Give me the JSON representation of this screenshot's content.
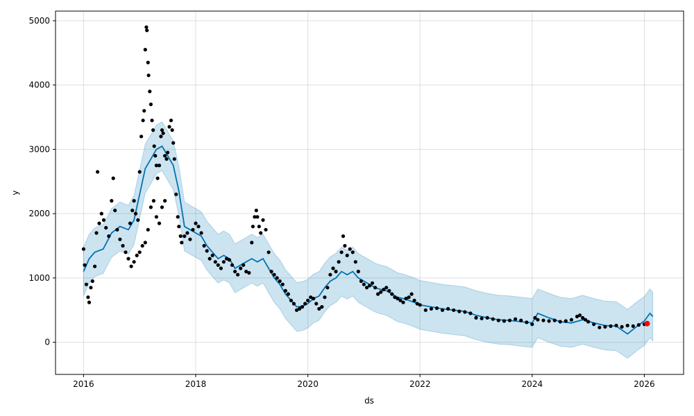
{
  "chart_data": {
    "type": "scatter",
    "title": "",
    "xlabel": "ds",
    "ylabel": "y",
    "xlim": [
      2015.5,
      2026.7
    ],
    "ylim": [
      -500,
      5150
    ],
    "x_ticks": [
      2016,
      2018,
      2020,
      2022,
      2024,
      2026
    ],
    "x_tick_labels": [
      "2016",
      "2018",
      "2020",
      "2022",
      "2024",
      "2026"
    ],
    "y_ticks": [
      0,
      1000,
      2000,
      3000,
      4000,
      5000
    ],
    "y_tick_labels": [
      "0",
      "1000",
      "2000",
      "3000",
      "4000",
      "5000"
    ],
    "grid": true,
    "colors": {
      "observed": "#000000",
      "forecast_line": "#0072B2",
      "uncertainty_band": "#0072B2",
      "highlight": "#ff0000"
    },
    "series": [
      {
        "kind": "observed_points",
        "points": [
          [
            2016.0,
            1450
          ],
          [
            2016.02,
            1200
          ],
          [
            2016.05,
            900
          ],
          [
            2016.08,
            700
          ],
          [
            2016.1,
            620
          ],
          [
            2016.13,
            850
          ],
          [
            2016.16,
            950
          ],
          [
            2016.2,
            1180
          ],
          [
            2016.23,
            1700
          ],
          [
            2016.25,
            2650
          ],
          [
            2016.28,
            1850
          ],
          [
            2016.32,
            2000
          ],
          [
            2016.36,
            1900
          ],
          [
            2016.4,
            1780
          ],
          [
            2016.45,
            1650
          ],
          [
            2016.5,
            2200
          ],
          [
            2016.53,
            2550
          ],
          [
            2016.56,
            2050
          ],
          [
            2016.6,
            1750
          ],
          [
            2016.65,
            1600
          ],
          [
            2016.7,
            1500
          ],
          [
            2016.75,
            1400
          ],
          [
            2016.8,
            1300
          ],
          [
            2016.85,
            1180
          ],
          [
            2016.9,
            1250
          ],
          [
            2016.95,
            1350
          ],
          [
            2017.0,
            1400
          ],
          [
            2017.05,
            1500
          ],
          [
            2017.1,
            1550
          ],
          [
            2017.15,
            1750
          ],
          [
            2017.2,
            2100
          ],
          [
            2017.25,
            2200
          ],
          [
            2017.3,
            1950
          ],
          [
            2017.35,
            1850
          ],
          [
            2017.4,
            2100
          ],
          [
            2017.45,
            2200
          ],
          [
            2016.83,
            1850
          ],
          [
            2016.87,
            2050
          ],
          [
            2016.9,
            2200
          ],
          [
            2016.93,
            2000
          ],
          [
            2016.97,
            1900
          ],
          [
            2017.0,
            2650
          ],
          [
            2017.03,
            3200
          ],
          [
            2017.06,
            3450
          ],
          [
            2017.08,
            3600
          ],
          [
            2017.1,
            4550
          ],
          [
            2017.12,
            4900
          ],
          [
            2017.13,
            4850
          ],
          [
            2017.15,
            4350
          ],
          [
            2017.16,
            4150
          ],
          [
            2017.18,
            3900
          ],
          [
            2017.2,
            3700
          ],
          [
            2017.22,
            3450
          ],
          [
            2017.24,
            3300
          ],
          [
            2017.26,
            3050
          ],
          [
            2017.28,
            2900
          ],
          [
            2017.3,
            2750
          ],
          [
            2017.32,
            2550
          ],
          [
            2017.35,
            2750
          ],
          [
            2017.38,
            3200
          ],
          [
            2017.4,
            3300
          ],
          [
            2017.42,
            3250
          ],
          [
            2017.45,
            2900
          ],
          [
            2017.48,
            2850
          ],
          [
            2017.5,
            2950
          ],
          [
            2017.53,
            3350
          ],
          [
            2017.56,
            3450
          ],
          [
            2017.58,
            3300
          ],
          [
            2017.6,
            3100
          ],
          [
            2017.62,
            2850
          ],
          [
            2017.65,
            2300
          ],
          [
            2017.68,
            1950
          ],
          [
            2017.7,
            1800
          ],
          [
            2017.73,
            1650
          ],
          [
            2017.75,
            1550
          ],
          [
            2017.8,
            1650
          ],
          [
            2017.85,
            1700
          ],
          [
            2017.9,
            1600
          ],
          [
            2017.95,
            1750
          ],
          [
            2018.0,
            1850
          ],
          [
            2018.05,
            1800
          ],
          [
            2018.1,
            1700
          ],
          [
            2018.15,
            1500
          ],
          [
            2018.2,
            1420
          ],
          [
            2018.25,
            1300
          ],
          [
            2018.3,
            1350
          ],
          [
            2018.35,
            1250
          ],
          [
            2018.4,
            1200
          ],
          [
            2018.45,
            1150
          ],
          [
            2018.5,
            1250
          ],
          [
            2018.55,
            1300
          ],
          [
            2018.6,
            1280
          ],
          [
            2018.65,
            1200
          ],
          [
            2018.7,
            1100
          ],
          [
            2018.75,
            1050
          ],
          [
            2018.8,
            1150
          ],
          [
            2018.85,
            1200
          ],
          [
            2018.9,
            1100
          ],
          [
            2018.95,
            1080
          ],
          [
            2019.0,
            1550
          ],
          [
            2019.02,
            1800
          ],
          [
            2019.05,
            1950
          ],
          [
            2019.08,
            2050
          ],
          [
            2019.1,
            1950
          ],
          [
            2019.13,
            1800
          ],
          [
            2019.16,
            1700
          ],
          [
            2019.2,
            1900
          ],
          [
            2019.25,
            1750
          ],
          [
            2019.3,
            1400
          ],
          [
            2019.35,
            1100
          ],
          [
            2019.4,
            1050
          ],
          [
            2019.45,
            1000
          ],
          [
            2019.5,
            950
          ],
          [
            2019.55,
            900
          ],
          [
            2019.6,
            800
          ],
          [
            2019.65,
            750
          ],
          [
            2019.7,
            650
          ],
          [
            2019.75,
            600
          ],
          [
            2019.8,
            500
          ],
          [
            2019.85,
            520
          ],
          [
            2019.9,
            550
          ],
          [
            2019.95,
            600
          ],
          [
            2020.0,
            650
          ],
          [
            2020.05,
            700
          ],
          [
            2020.1,
            680
          ],
          [
            2020.15,
            600
          ],
          [
            2020.2,
            520
          ],
          [
            2020.25,
            550
          ],
          [
            2020.3,
            700
          ],
          [
            2020.35,
            850
          ],
          [
            2020.4,
            1050
          ],
          [
            2020.45,
            1150
          ],
          [
            2020.5,
            1100
          ],
          [
            2020.55,
            1250
          ],
          [
            2020.6,
            1400
          ],
          [
            2020.63,
            1650
          ],
          [
            2020.66,
            1500
          ],
          [
            2020.7,
            1350
          ],
          [
            2020.75,
            1450
          ],
          [
            2020.8,
            1400
          ],
          [
            2020.85,
            1250
          ],
          [
            2020.9,
            1100
          ],
          [
            2020.95,
            950
          ],
          [
            2021.0,
            900
          ],
          [
            2021.05,
            850
          ],
          [
            2021.1,
            880
          ],
          [
            2021.15,
            920
          ],
          [
            2021.2,
            850
          ],
          [
            2021.25,
            750
          ],
          [
            2021.3,
            780
          ],
          [
            2021.35,
            820
          ],
          [
            2021.4,
            850
          ],
          [
            2021.45,
            800
          ],
          [
            2021.5,
            750
          ],
          [
            2021.55,
            700
          ],
          [
            2021.6,
            680
          ],
          [
            2021.65,
            650
          ],
          [
            2021.7,
            620
          ],
          [
            2021.75,
            680
          ],
          [
            2021.8,
            700
          ],
          [
            2021.85,
            750
          ],
          [
            2021.9,
            650
          ],
          [
            2021.95,
            600
          ],
          [
            2022.0,
            580
          ],
          [
            2022.1,
            500
          ],
          [
            2022.2,
            520
          ],
          [
            2022.3,
            530
          ],
          [
            2022.4,
            500
          ],
          [
            2022.5,
            520
          ],
          [
            2022.6,
            500
          ],
          [
            2022.7,
            480
          ],
          [
            2022.8,
            470
          ],
          [
            2022.9,
            450
          ],
          [
            2023.0,
            380
          ],
          [
            2023.1,
            370
          ],
          [
            2023.2,
            380
          ],
          [
            2023.3,
            360
          ],
          [
            2023.4,
            340
          ],
          [
            2023.5,
            330
          ],
          [
            2023.6,
            340
          ],
          [
            2023.7,
            360
          ],
          [
            2023.8,
            340
          ],
          [
            2023.9,
            310
          ],
          [
            2024.0,
            280
          ],
          [
            2024.05,
            380
          ],
          [
            2024.1,
            350
          ],
          [
            2024.2,
            340
          ],
          [
            2024.3,
            330
          ],
          [
            2024.4,
            340
          ],
          [
            2024.5,
            320
          ],
          [
            2024.6,
            330
          ],
          [
            2024.7,
            350
          ],
          [
            2024.8,
            400
          ],
          [
            2024.85,
            420
          ],
          [
            2024.9,
            380
          ],
          [
            2024.95,
            350
          ],
          [
            2025.0,
            320
          ],
          [
            2025.1,
            280
          ],
          [
            2025.2,
            230
          ],
          [
            2025.3,
            240
          ],
          [
            2025.4,
            250
          ],
          [
            2025.5,
            260
          ],
          [
            2025.6,
            240
          ],
          [
            2025.7,
            260
          ],
          [
            2025.8,
            250
          ],
          [
            2025.9,
            270
          ],
          [
            2026.0,
            280
          ],
          [
            2026.05,
            290
          ]
        ]
      },
      {
        "kind": "forecast_line",
        "points": [
          [
            2016.0,
            1100
          ],
          [
            2016.1,
            1300
          ],
          [
            2016.2,
            1400
          ],
          [
            2016.35,
            1450
          ],
          [
            2016.5,
            1700
          ],
          [
            2016.65,
            1800
          ],
          [
            2016.8,
            1750
          ],
          [
            2016.9,
            1900
          ],
          [
            2017.0,
            2300
          ],
          [
            2017.1,
            2700
          ],
          [
            2017.2,
            2850
          ],
          [
            2017.3,
            3000
          ],
          [
            2017.4,
            3050
          ],
          [
            2017.5,
            2900
          ],
          [
            2017.6,
            2750
          ],
          [
            2017.7,
            2350
          ],
          [
            2017.8,
            1800
          ],
          [
            2017.9,
            1750
          ],
          [
            2018.0,
            1700
          ],
          [
            2018.1,
            1650
          ],
          [
            2018.2,
            1500
          ],
          [
            2018.3,
            1400
          ],
          [
            2018.4,
            1300
          ],
          [
            2018.5,
            1350
          ],
          [
            2018.6,
            1300
          ],
          [
            2018.7,
            1150
          ],
          [
            2018.8,
            1200
          ],
          [
            2018.9,
            1250
          ],
          [
            2019.0,
            1300
          ],
          [
            2019.1,
            1250
          ],
          [
            2019.2,
            1300
          ],
          [
            2019.3,
            1150
          ],
          [
            2019.4,
            1000
          ],
          [
            2019.5,
            900
          ],
          [
            2019.6,
            750
          ],
          [
            2019.7,
            650
          ],
          [
            2019.8,
            550
          ],
          [
            2019.9,
            560
          ],
          [
            2020.0,
            600
          ],
          [
            2020.1,
            680
          ],
          [
            2020.2,
            720
          ],
          [
            2020.3,
            850
          ],
          [
            2020.4,
            950
          ],
          [
            2020.5,
            1000
          ],
          [
            2020.6,
            1100
          ],
          [
            2020.7,
            1050
          ],
          [
            2020.8,
            1100
          ],
          [
            2020.9,
            1000
          ],
          [
            2021.0,
            950
          ],
          [
            2021.1,
            900
          ],
          [
            2021.2,
            850
          ],
          [
            2021.3,
            820
          ],
          [
            2021.4,
            800
          ],
          [
            2021.5,
            750
          ],
          [
            2021.6,
            700
          ],
          [
            2021.7,
            680
          ],
          [
            2021.8,
            650
          ],
          [
            2021.9,
            620
          ],
          [
            2022.0,
            580
          ],
          [
            2022.2,
            550
          ],
          [
            2022.4,
            520
          ],
          [
            2022.6,
            500
          ],
          [
            2022.8,
            480
          ],
          [
            2023.0,
            420
          ],
          [
            2023.2,
            380
          ],
          [
            2023.4,
            350
          ],
          [
            2023.6,
            340
          ],
          [
            2023.8,
            320
          ],
          [
            2024.0,
            300
          ],
          [
            2024.1,
            450
          ],
          [
            2024.3,
            380
          ],
          [
            2024.5,
            320
          ],
          [
            2024.7,
            300
          ],
          [
            2024.9,
            350
          ],
          [
            2025.1,
            300
          ],
          [
            2025.3,
            260
          ],
          [
            2025.5,
            250
          ],
          [
            2025.7,
            130
          ],
          [
            2025.8,
            200
          ],
          [
            2025.9,
            270
          ],
          [
            2026.0,
            330
          ],
          [
            2026.1,
            450
          ],
          [
            2026.15,
            400
          ]
        ]
      },
      {
        "kind": "uncertainty_band",
        "halfwidth": 380
      },
      {
        "kind": "highlight_point",
        "points": [
          [
            2026.05,
            290
          ]
        ]
      }
    ]
  }
}
